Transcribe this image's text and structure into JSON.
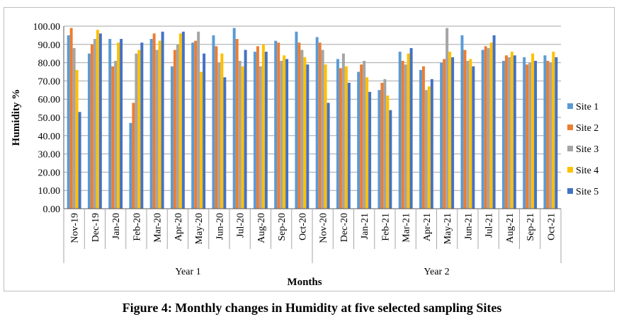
{
  "caption": "Figure 4: Monthly changes in Humidity at five selected sampling Sites",
  "chart_data": {
    "type": "bar",
    "xlabel": "Months",
    "ylabel": "Humidity  %",
    "ylim": [
      0,
      100
    ],
    "yticks": [
      "0.00",
      "10.00",
      "20.00",
      "30.00",
      "40.00",
      "50.00",
      "60.00",
      "70.00",
      "80.00",
      "90.00",
      "100.00"
    ],
    "grid": true,
    "legend_position": "right",
    "categories": [
      "Nov-19",
      "Dec-19",
      "Jan-20",
      "Feb-20",
      "Mar-20",
      "Apr-20",
      "May-20",
      "Jun-20",
      "Jul-20",
      "Aug-20",
      "Sep-20",
      "Oct-20",
      "Nov-20",
      "Dec-20",
      "Jan-21",
      "Feb-21",
      "Mar-21",
      "Apr-21",
      "May-21",
      "Jun-21",
      "Jul-21",
      "Aug-21",
      "Sep-21",
      "Oct-21"
    ],
    "groups": [
      {
        "label": "Year 1",
        "start": 0,
        "end": 11
      },
      {
        "label": "Year 2",
        "start": 12,
        "end": 23
      }
    ],
    "series": [
      {
        "name": "Site 1",
        "color": "#5b9bd5",
        "values": [
          95,
          85,
          93,
          47,
          93,
          78,
          91,
          95,
          99,
          86,
          92,
          97,
          94,
          82,
          75,
          65,
          86,
          76,
          80,
          95,
          87,
          81,
          83,
          84
        ]
      },
      {
        "name": "Site 2",
        "color": "#ed7d31",
        "values": [
          99,
          90,
          78,
          58,
          96,
          87,
          92,
          89,
          93,
          89,
          91,
          91,
          91,
          77,
          79,
          69,
          81,
          78,
          82,
          87,
          89,
          84,
          79,
          81
        ]
      },
      {
        "name": "Site 3",
        "color": "#a5a5a5",
        "values": [
          88,
          93,
          81,
          85,
          87,
          90,
          97,
          80,
          81,
          78,
          81,
          87,
          87,
          85,
          81,
          71,
          79,
          65,
          99,
          81,
          88,
          83,
          80,
          80
        ]
      },
      {
        "name": "Site 4",
        "color": "#ffc000",
        "values": [
          76,
          98,
          91,
          87,
          92,
          96,
          75,
          85,
          78,
          90,
          84,
          83,
          79,
          78,
          72,
          62,
          85,
          67,
          86,
          82,
          91,
          86,
          85,
          86
        ]
      },
      {
        "name": "Site 5",
        "color": "#4472c4",
        "values": [
          53,
          96,
          93,
          91,
          97,
          97,
          85,
          72,
          87,
          86,
          82,
          79,
          58,
          69,
          64,
          54,
          88,
          71,
          83,
          78,
          95,
          84,
          81,
          83
        ]
      }
    ]
  }
}
